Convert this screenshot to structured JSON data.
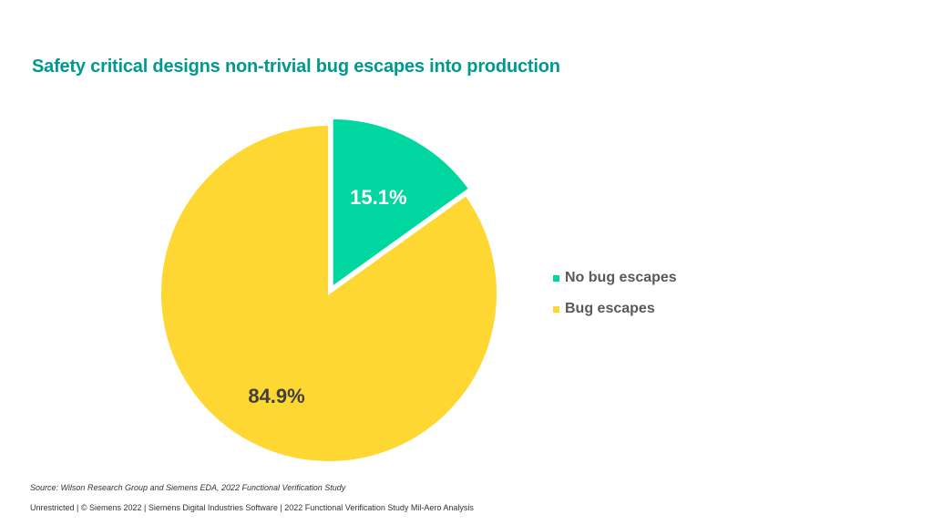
{
  "title": "Safety critical designs non-trivial bug escapes into production",
  "chart_data": {
    "type": "pie",
    "title": "Safety critical designs non-trivial bug escapes into production",
    "slices": [
      {
        "label": "No bug escapes",
        "value": 15.1,
        "display": "15.1%",
        "color": "#00d7a0",
        "exploded": true
      },
      {
        "label": "Bug escapes",
        "value": 84.9,
        "display": "84.9%",
        "color": "#ffd732",
        "exploded": false
      }
    ],
    "legend_position": "right"
  },
  "legend": {
    "items": [
      {
        "label": "No bug escapes",
        "color": "#00d7a0"
      },
      {
        "label": "Bug escapes",
        "color": "#ffd732"
      }
    ]
  },
  "source": "Source:  Wilson Research Group and Siemens EDA, 2022 Functional Verification Study",
  "footer": "Unrestricted | © Siemens 2022 | Siemens Digital Industries Software | 2022 Functional Verification Study Mil-Aero Analysis"
}
